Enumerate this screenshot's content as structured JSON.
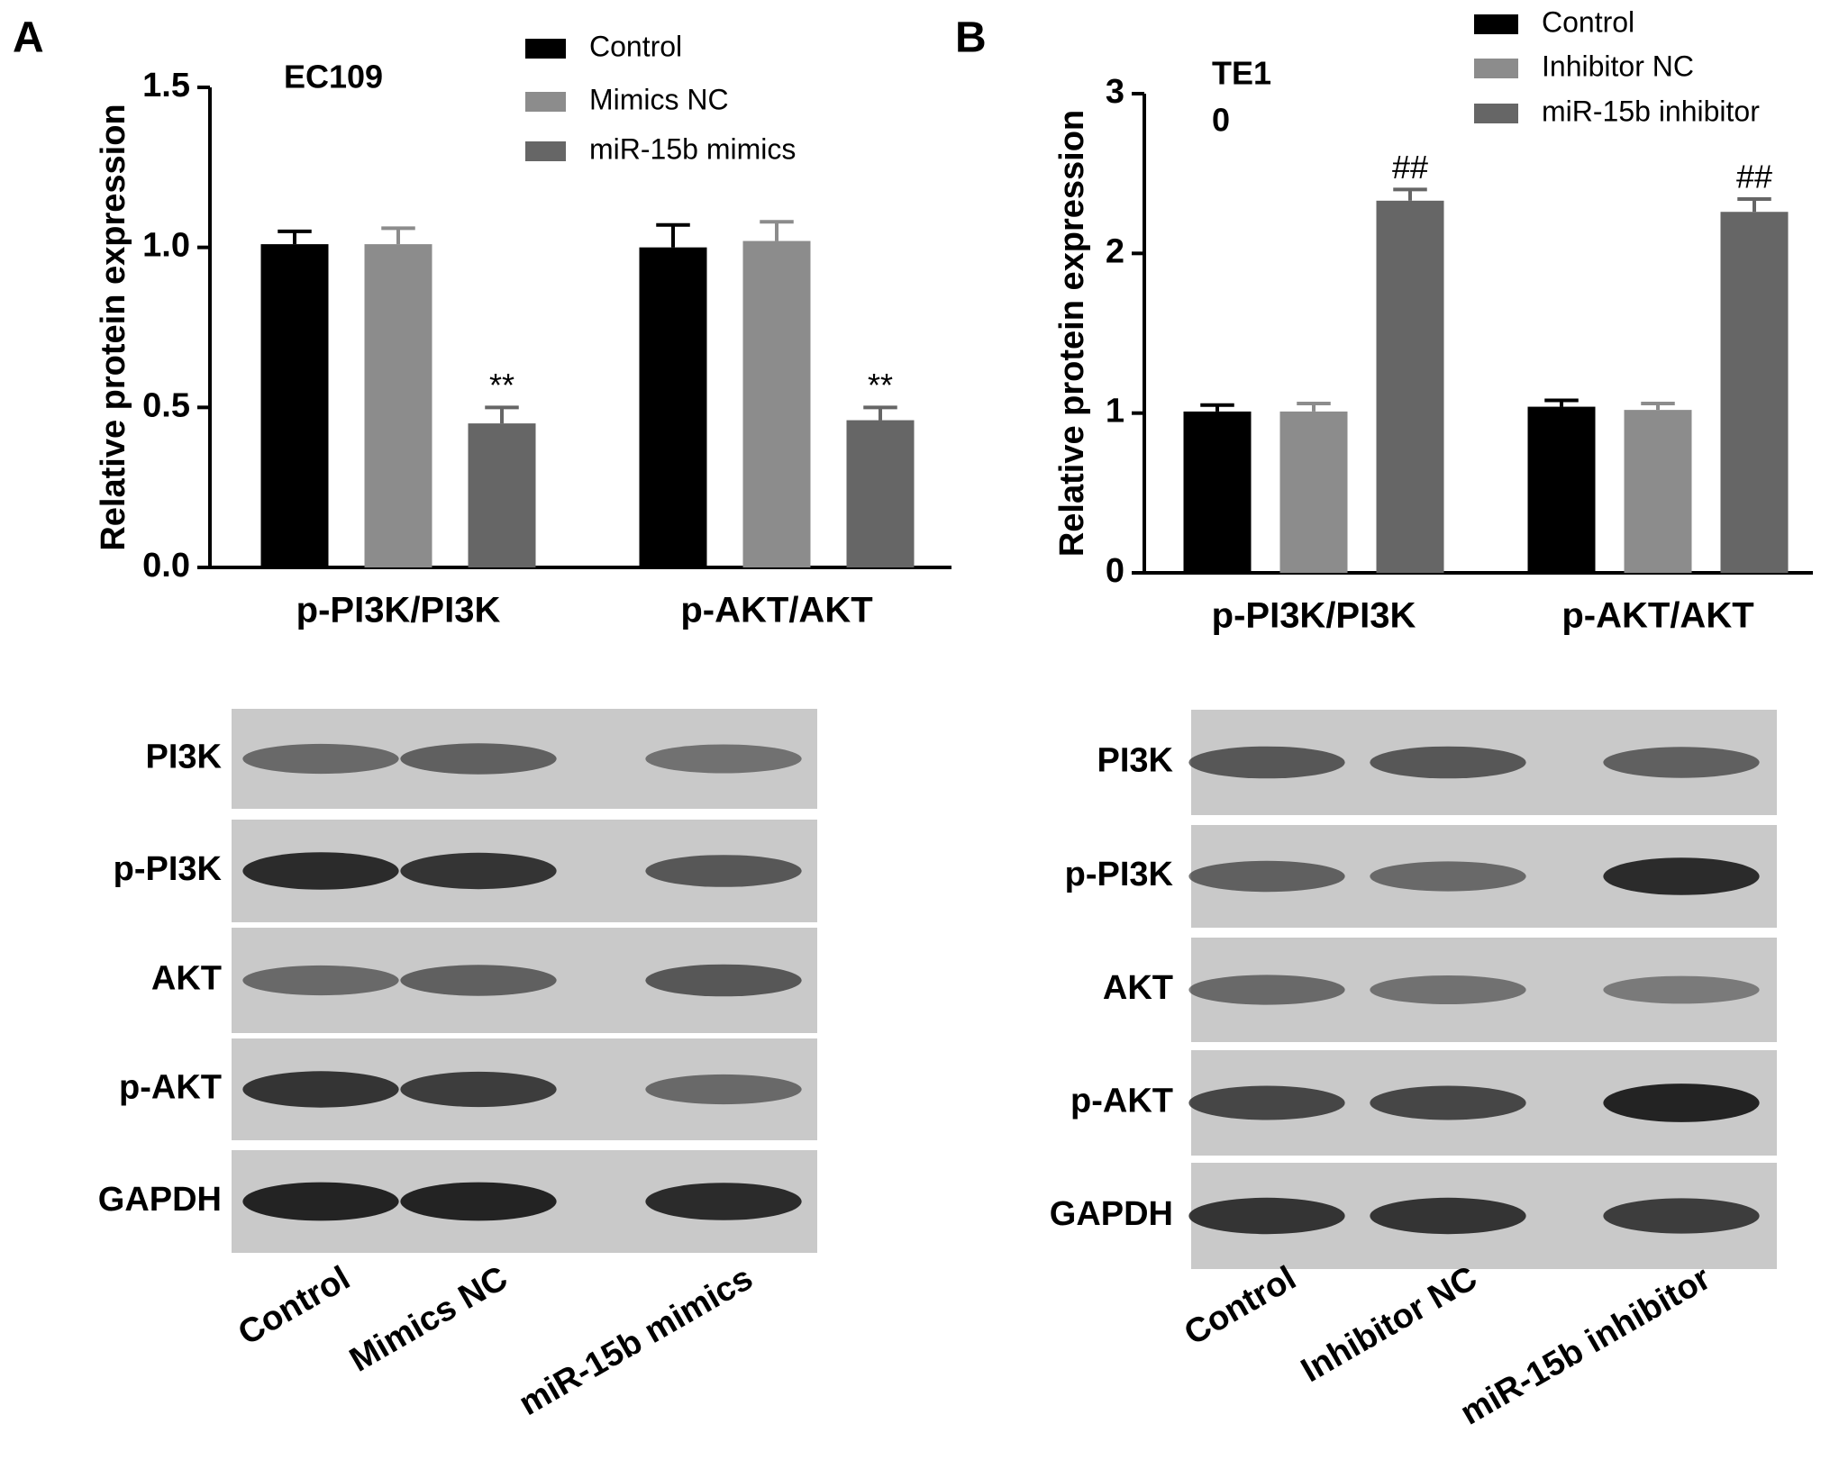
{
  "panels": [
    "A",
    "B"
  ],
  "chart_data": [
    {
      "type": "bar",
      "title": [
        "EC109"
      ],
      "ylabel": "Relative protein expression",
      "categories": [
        "p-PI3K/PI3K",
        "p-AKT/AKT"
      ],
      "series": [
        {
          "name": "Control",
          "color": "#000000",
          "values": [
            1.01,
            1.0
          ],
          "errors": [
            0.04,
            0.07
          ]
        },
        {
          "name": "Mimics NC",
          "color": "#8c8c8c",
          "values": [
            1.01,
            1.02
          ],
          "errors": [
            0.05,
            0.06
          ]
        },
        {
          "name": "miR-15b mimics",
          "color": "#666666",
          "values": [
            0.45,
            0.46
          ],
          "errors": [
            0.05,
            0.04
          ],
          "significance": [
            "**",
            "**"
          ]
        }
      ],
      "ylim": [
        0,
        1.5
      ],
      "yticks": [
        {
          "value": 0,
          "label": "0.0"
        },
        0.5,
        {
          "value": 1,
          "label": "1.0"
        },
        1.5
      ]
    },
    {
      "type": "bar",
      "title": [
        "TE1",
        "0"
      ],
      "ylabel": "Relative protein expression",
      "categories": [
        "p-PI3K/PI3K",
        "p-AKT/AKT"
      ],
      "series": [
        {
          "name": "Control",
          "color": "#000000",
          "values": [
            1.01,
            1.04
          ],
          "errors": [
            0.04,
            0.04
          ]
        },
        {
          "name": "Inhibitor NC",
          "color": "#8c8c8c",
          "values": [
            1.01,
            1.02
          ],
          "errors": [
            0.05,
            0.04
          ]
        },
        {
          "name": "miR-15b inhibitor",
          "color": "#666666",
          "values": [
            2.33,
            2.26
          ],
          "errors": [
            0.07,
            0.08
          ],
          "significance": [
            "##",
            "##"
          ]
        }
      ],
      "ylim": [
        0,
        3
      ],
      "yticks": [
        0,
        1,
        2,
        3
      ]
    }
  ],
  "blots": [
    {
      "rows": [
        "PI3K",
        "p-PI3K",
        "AKT",
        "p-AKT",
        "GAPDH"
      ],
      "lanes": [
        "Control",
        "Mimics NC",
        "miR-15b mimics"
      ]
    },
    {
      "rows": [
        "PI3K",
        "p-PI3K",
        "AKT",
        "p-AKT",
        "GAPDH"
      ],
      "lanes": [
        "Control",
        "Inhibitor NC",
        "miR-15b inhibitor"
      ]
    }
  ]
}
